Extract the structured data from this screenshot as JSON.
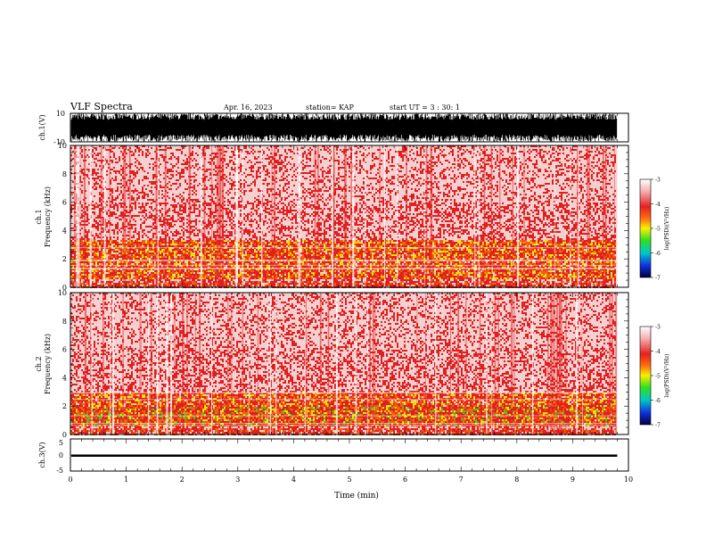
{
  "header": {
    "title": "VLF Spectra",
    "date": "Apr. 16, 2023",
    "station": "station= KAP",
    "start": "start UT =  3 : 30: 1"
  },
  "colors": {
    "background": "#f4d0d0",
    "noise": "#e02020",
    "band_mid": "#f06010",
    "band_strong": "#f0e000",
    "band_green": "#40d020",
    "trace": "#000000"
  },
  "chart_data": [
    {
      "type": "line",
      "panel": "ch1-waveform",
      "ylabel": "ch.1(V)",
      "ylim": [
        -10,
        10
      ],
      "ytick_labels": [
        "10",
        "-10"
      ],
      "xlim": [
        0,
        10
      ],
      "note_visible": "dense oscillating trace saturating between about -10 and 10 V from 0 to about 9.8 min"
    },
    {
      "type": "heatmap",
      "panel": "ch1-spectrogram",
      "ylabel": "ch.1",
      "ylabel2": "Frequency (kHz)",
      "ylim": [
        0,
        10
      ],
      "yticks": [
        0,
        2,
        4,
        6,
        8,
        10
      ],
      "xlim": [
        0,
        10
      ],
      "data_end_min": 9.8,
      "band_kHz": [
        0.6,
        3.4
      ],
      "colorbar": {
        "label": "log(PSD)(V²/Hz)",
        "range": [
          -7,
          -3
        ],
        "tick_labels": [
          "-3",
          "-4",
          "-5",
          "-6",
          "-7"
        ]
      }
    },
    {
      "type": "heatmap",
      "panel": "ch2-spectrogram",
      "ylabel": "ch.2",
      "ylabel2": "Frequency (kHz)",
      "ylim": [
        0,
        10
      ],
      "yticks": [
        0,
        2,
        4,
        6,
        8,
        10
      ],
      "xlim": [
        0,
        10
      ],
      "data_end_min": 9.8,
      "band_kHz": [
        0.6,
        3.0
      ],
      "colorbar": {
        "label": "log(PSD)(V²/Hz)",
        "range": [
          -7,
          -3
        ],
        "tick_labels": [
          "-3",
          "-4",
          "-5",
          "-6",
          "-7"
        ]
      }
    },
    {
      "type": "line",
      "panel": "ch3-waveform",
      "ylabel": "ch.3(V)",
      "ylim": [
        -5,
        5
      ],
      "ytick_labels": [
        "5",
        "0",
        "-5"
      ],
      "xlim": [
        0,
        10
      ],
      "level_V": -0.2,
      "xlabel": "Time (min)",
      "xticks": [
        0,
        1,
        2,
        3,
        4,
        5,
        6,
        7,
        8,
        9,
        10
      ]
    }
  ]
}
